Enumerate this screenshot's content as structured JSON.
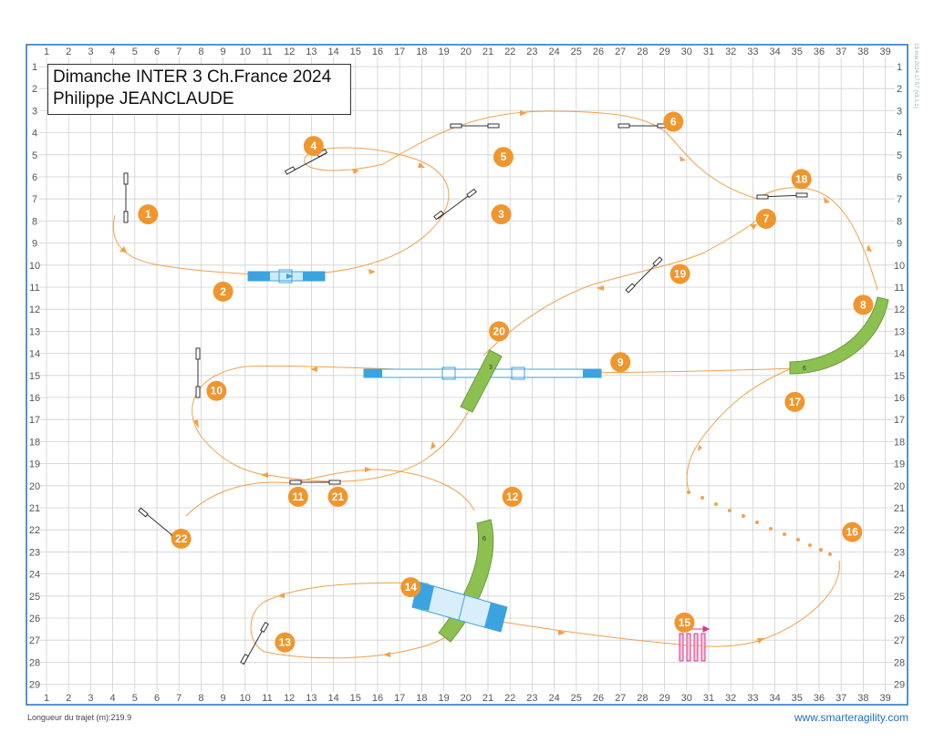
{
  "title": {
    "line1": "Dimanche INTER 3 Ch.France 2024",
    "line2": "Philippe JEANCLAUDE"
  },
  "footer": {
    "length_text": "Longueur du trajet (m):219.9",
    "website": "www.smarteragility.com"
  },
  "stamp_text": "13 mai 2024 17:57 (v3.1.1)",
  "grid": {
    "columns": [
      "1",
      "2",
      "3",
      "4",
      "5",
      "6",
      "7",
      "8",
      "9",
      "10",
      "11",
      "12",
      "13",
      "14",
      "15",
      "16",
      "17",
      "18",
      "19",
      "20",
      "21",
      "22",
      "23",
      "24",
      "25",
      "26",
      "27",
      "28",
      "29",
      "30",
      "31",
      "32",
      "33",
      "34",
      "35",
      "36",
      "37",
      "38",
      "39"
    ],
    "rows": [
      "1",
      "2",
      "3",
      "4",
      "5",
      "6",
      "7",
      "8",
      "9",
      "10",
      "11",
      "12",
      "13",
      "14",
      "15",
      "16",
      "17",
      "18",
      "19",
      "20",
      "21",
      "22",
      "23",
      "24",
      "25",
      "26",
      "27",
      "28",
      "29"
    ]
  },
  "colors": {
    "border": "#1e6fc4",
    "grid": "#d0d0d0",
    "path": "#f2a04a",
    "marker": "#f0962e",
    "tunnel": "#8cc152",
    "dogwalk": "#3ba3e0",
    "weave": "#e0338a"
  },
  "numbers": [
    {
      "label": "1",
      "col": 5.6,
      "row": 7.7
    },
    {
      "label": "2",
      "col": 9.0,
      "row": 11.2
    },
    {
      "label": "3",
      "col": 21.6,
      "row": 7.7
    },
    {
      "label": "4",
      "col": 13.1,
      "row": 4.6
    },
    {
      "label": "5",
      "col": 21.7,
      "row": 5.1
    },
    {
      "label": "6",
      "col": 29.4,
      "row": 3.5
    },
    {
      "label": "7",
      "col": 33.6,
      "row": 7.9
    },
    {
      "label": "8",
      "col": 38.0,
      "row": 11.8
    },
    {
      "label": "9",
      "col": 27.0,
      "row": 14.4
    },
    {
      "label": "10",
      "col": 8.7,
      "row": 15.7
    },
    {
      "label": "11",
      "col": 12.4,
      "row": 20.5
    },
    {
      "label": "12",
      "col": 22.1,
      "row": 20.5
    },
    {
      "label": "13",
      "col": 11.8,
      "row": 27.1
    },
    {
      "label": "14",
      "col": 17.5,
      "row": 24.6
    },
    {
      "label": "15",
      "col": 29.9,
      "row": 26.2
    },
    {
      "label": "16",
      "col": 37.5,
      "row": 22.1
    },
    {
      "label": "17",
      "col": 34.9,
      "row": 16.2
    },
    {
      "label": "18",
      "col": 35.2,
      "row": 6.1
    },
    {
      "label": "19",
      "col": 29.7,
      "row": 10.4
    },
    {
      "label": "20",
      "col": 21.5,
      "row": 13.0
    },
    {
      "label": "21",
      "col": 14.2,
      "row": 20.5
    },
    {
      "label": "22",
      "col": 7.1,
      "row": 22.4
    }
  ],
  "tunnel_labels": {
    "t8": "6",
    "t12": "6",
    "t20": "3"
  }
}
